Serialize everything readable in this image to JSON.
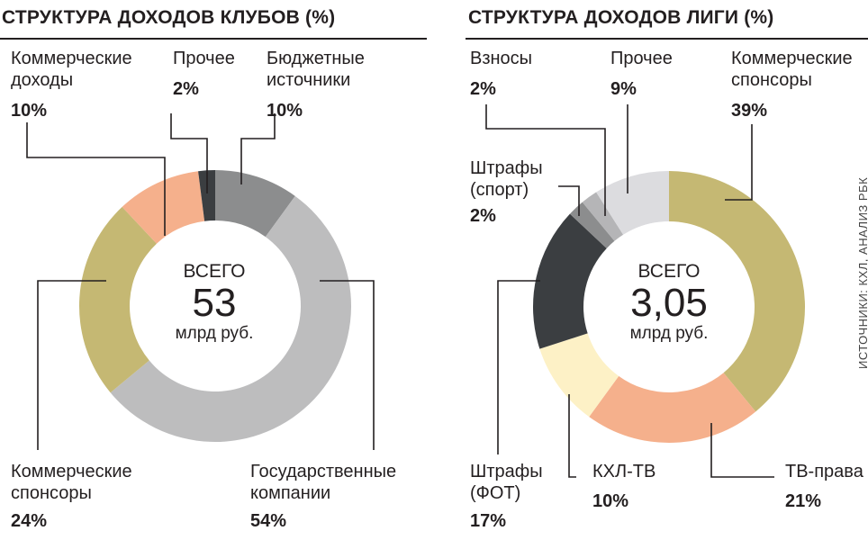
{
  "chart_data": [
    {
      "type": "pie",
      "title": "СТРУКТУРА ДОХОДОВ КЛУБОВ (%)",
      "center": {
        "top": "ВСЕГО",
        "value": "53",
        "unit": "млрд руб."
      },
      "slices": [
        {
          "label": "Бюджетные источники",
          "value": 10,
          "pct_label": "10%",
          "color": "#8c8d8e"
        },
        {
          "label": "Государственные компании",
          "value": 54,
          "pct_label": "54%",
          "color": "#bdbdbe"
        },
        {
          "label": "Коммерческие спонсоры",
          "value": 24,
          "pct_label": "24%",
          "color": "#c5b873"
        },
        {
          "label": "Коммерческие доходы",
          "value": 10,
          "pct_label": "10%",
          "color": "#f5b08c"
        },
        {
          "label": "Прочее",
          "value": 2,
          "pct_label": "2%",
          "color": "#3b3e41"
        }
      ]
    },
    {
      "type": "pie",
      "title": "СТРУКТУРА ДОХОДОВ ЛИГИ (%)",
      "center": {
        "top": "ВСЕГО",
        "value": "3,05",
        "unit": "млрд руб."
      },
      "slices": [
        {
          "label": "Коммерческие спонсоры",
          "value": 39,
          "pct_label": "39%",
          "color": "#c5b873"
        },
        {
          "label": "ТВ-права",
          "value": 21,
          "pct_label": "21%",
          "color": "#f5b08c"
        },
        {
          "label": "КХЛ-ТВ",
          "value": 10,
          "pct_label": "10%",
          "color": "#fdf1c6"
        },
        {
          "label": "Штрафы (ФОТ)",
          "value": 17,
          "pct_label": "17%",
          "color": "#3b3e41"
        },
        {
          "label": "Штрафы (спорт)",
          "value": 2,
          "pct_label": "2%",
          "color": "#8c8d8e"
        },
        {
          "label": "Взносы",
          "value": 2,
          "pct_label": "2%",
          "color": "#b5b5b7"
        },
        {
          "label": "Прочее",
          "value": 9,
          "pct_label": "9%",
          "color": "#dcdcdf"
        }
      ]
    }
  ],
  "source": "ИСТОЧНИКИ: КХЛ, АНАЛИЗ РБК"
}
